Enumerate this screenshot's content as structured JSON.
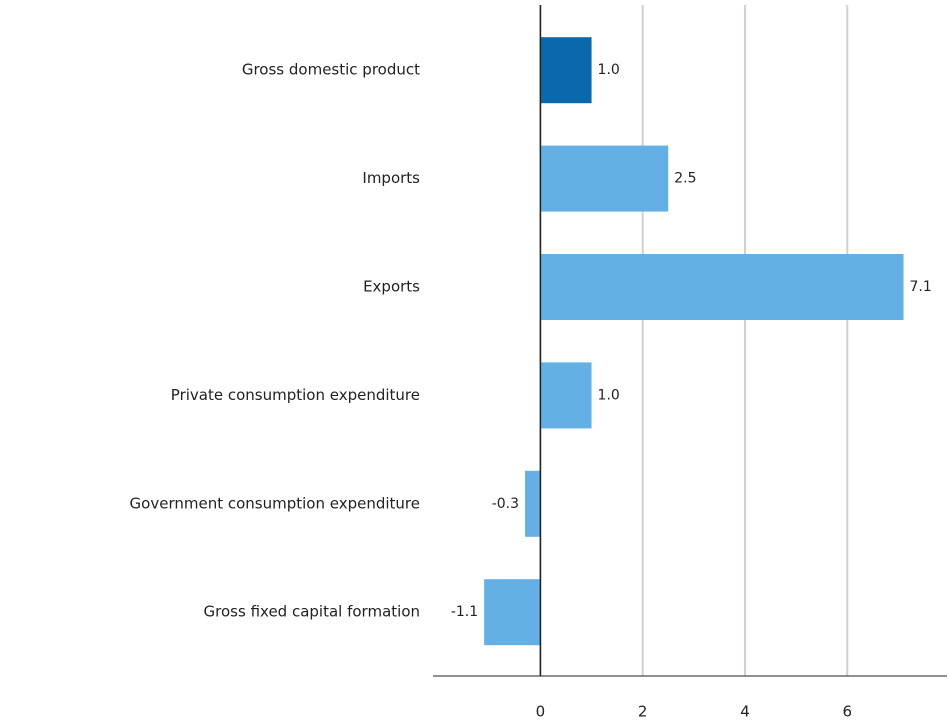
{
  "chart_data": {
    "type": "barh",
    "categories": [
      "Gross domestic product",
      "Imports",
      "Exports",
      "Private consumption expenditure",
      "Government consumption expenditure",
      "Gross fixed capital formation"
    ],
    "values": [
      1.0,
      2.5,
      7.1,
      1.0,
      -0.3,
      -1.1
    ],
    "value_labels": [
      "1.0",
      "2.5",
      "7.1",
      "1.0",
      "-0.3",
      "-1.1"
    ],
    "colors": [
      "#0b68aa",
      "#64b0e4",
      "#64b0e4",
      "#64b0e4",
      "#64b0e4",
      "#64b0e4"
    ],
    "xlim": [
      -2.1,
      7.95
    ],
    "xticks": [
      0,
      2,
      4,
      6
    ],
    "grid": true
  }
}
